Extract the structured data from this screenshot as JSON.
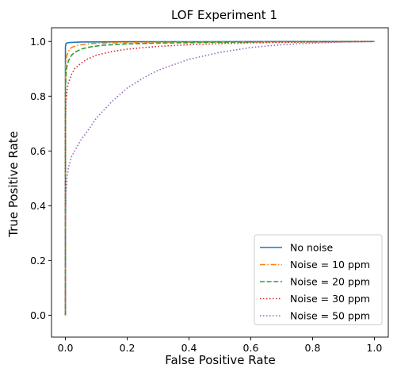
{
  "chart_data": {
    "type": "line",
    "title": "LOF Experiment 1",
    "xlabel": "False Positive Rate",
    "ylabel": "True Positive Rate",
    "xlim": [
      -0.045,
      1.045
    ],
    "ylim": [
      -0.08,
      1.05
    ],
    "xticks": [
      0.0,
      0.2,
      0.4,
      0.6,
      0.8,
      1.0
    ],
    "yticks": [
      0.0,
      0.2,
      0.4,
      0.6,
      0.8,
      1.0
    ],
    "xtick_labels": [
      "0.0",
      "0.2",
      "0.4",
      "0.6",
      "0.8",
      "1.0"
    ],
    "ytick_labels": [
      "0.0",
      "0.2",
      "0.4",
      "0.6",
      "0.8",
      "1.0"
    ],
    "grid": false,
    "legend_position": "lower-right",
    "series": [
      {
        "name": "No noise",
        "color": "#1f77b4",
        "style": "solid",
        "x": [
          0.0,
          0.0,
          0.002,
          0.01,
          0.05,
          0.2,
          1.0
        ],
        "y": [
          0.0,
          0.98,
          0.993,
          0.996,
          0.998,
          0.999,
          1.0
        ]
      },
      {
        "name": "Noise = 10 ppm",
        "color": "#ff7f0e",
        "style": "dashdot",
        "x": [
          0.0,
          0.0,
          0.002,
          0.005,
          0.01,
          0.02,
          0.04,
          0.08,
          0.15,
          0.3,
          0.5,
          1.0
        ],
        "y": [
          0.0,
          0.9,
          0.93,
          0.95,
          0.965,
          0.978,
          0.986,
          0.992,
          0.995,
          0.997,
          0.998,
          1.0
        ]
      },
      {
        "name": "Noise = 20 ppm",
        "color": "#2ca02c",
        "style": "dashed",
        "x": [
          0.0,
          0.0,
          0.002,
          0.005,
          0.01,
          0.02,
          0.03,
          0.05,
          0.08,
          0.12,
          0.2,
          0.3,
          0.5,
          0.7,
          1.0
        ],
        "y": [
          0.0,
          0.82,
          0.88,
          0.91,
          0.93,
          0.95,
          0.96,
          0.972,
          0.98,
          0.986,
          0.991,
          0.994,
          0.997,
          0.999,
          1.0
        ]
      },
      {
        "name": "Noise = 30 ppm",
        "color": "#d62728",
        "style": "dotted",
        "x": [
          0.0,
          0.0,
          0.002,
          0.005,
          0.01,
          0.02,
          0.03,
          0.05,
          0.07,
          0.1,
          0.15,
          0.2,
          0.3,
          0.4,
          0.5,
          0.6,
          0.8,
          1.0
        ],
        "y": [
          0.0,
          0.72,
          0.78,
          0.82,
          0.85,
          0.88,
          0.9,
          0.92,
          0.935,
          0.95,
          0.963,
          0.972,
          0.982,
          0.988,
          0.992,
          0.995,
          0.998,
          1.0
        ]
      },
      {
        "name": "Noise = 50 ppm",
        "color": "#9467bd",
        "style": "dotted",
        "x": [
          0.0,
          0.0,
          0.002,
          0.005,
          0.01,
          0.02,
          0.03,
          0.05,
          0.07,
          0.1,
          0.15,
          0.2,
          0.25,
          0.3,
          0.4,
          0.5,
          0.6,
          0.7,
          0.8,
          0.9,
          1.0
        ],
        "y": [
          0.0,
          0.3,
          0.45,
          0.5,
          0.54,
          0.58,
          0.6,
          0.64,
          0.67,
          0.72,
          0.78,
          0.83,
          0.865,
          0.895,
          0.935,
          0.96,
          0.978,
          0.988,
          0.994,
          0.998,
          1.0
        ]
      }
    ]
  }
}
